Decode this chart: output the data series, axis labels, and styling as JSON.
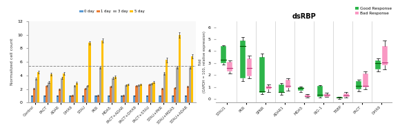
{
  "left": {
    "categories": [
      "Control",
      "PACT",
      "ADAR",
      "DHX9",
      "STAU",
      "PKR",
      "MDA5",
      "PACT+ADAR",
      "PACT+DHX9",
      "PACT+STAU",
      "STAU+PKR",
      "STAU+MDA5",
      "STAU+ADAR"
    ],
    "days": [
      "0 day",
      "1 day",
      "3 day",
      "5 day"
    ],
    "colors": [
      "#5b9bd5",
      "#ed7d31",
      "#a5a5a5",
      "#ffc000"
    ],
    "data": {
      "0 day": [
        1.0,
        1.0,
        1.0,
        1.0,
        1.0,
        1.0,
        1.0,
        1.0,
        1.0,
        1.0,
        1.0,
        1.0,
        1.0
      ],
      "1 day": [
        2.1,
        2.5,
        2.0,
        1.0,
        2.1,
        1.0,
        2.4,
        1.0,
        2.5,
        2.7,
        2.1,
        2.2,
        2.4
      ],
      "3 day": [
        3.5,
        3.0,
        3.6,
        2.5,
        2.5,
        5.2,
        3.6,
        2.6,
        2.6,
        2.8,
        4.3,
        5.2,
        5.2
      ],
      "5 day": [
        4.5,
        4.2,
        4.3,
        2.9,
        8.8,
        9.2,
        3.8,
        2.7,
        2.7,
        3.0,
        6.3,
        10.0,
        6.8
      ]
    },
    "errors": {
      "0 day": [
        0.05,
        0.05,
        0.05,
        0.05,
        0.05,
        0.05,
        0.05,
        0.05,
        0.05,
        0.05,
        0.05,
        0.05,
        0.05
      ],
      "1 day": [
        0.1,
        0.1,
        0.1,
        0.1,
        0.1,
        0.1,
        0.1,
        0.1,
        0.1,
        0.1,
        0.1,
        0.1,
        0.1
      ],
      "3 day": [
        0.15,
        0.15,
        0.15,
        0.1,
        0.1,
        0.2,
        0.15,
        0.1,
        0.1,
        0.1,
        0.2,
        0.2,
        0.2
      ],
      "5 day": [
        0.2,
        0.2,
        0.2,
        0.15,
        0.3,
        0.3,
        0.2,
        0.1,
        0.1,
        0.15,
        0.35,
        0.4,
        0.3
      ]
    },
    "dashed_line_y": 5.4,
    "ylim": [
      0,
      12
    ],
    "yticks": [
      0,
      2,
      4,
      6,
      8,
      10,
      12
    ],
    "ylabel": "Normalized cell count"
  },
  "right": {
    "title": "dsRBP",
    "categories": [
      "STAU1",
      "PKR",
      "SPNR",
      "ADAR1",
      "MDA5",
      "RIG-1",
      "TRBP",
      "PACT",
      "DHX9"
    ],
    "ylabel": "Fold\n(GAPDH = 100, relative expression)",
    "ylim": [
      -0.3,
      6.5
    ],
    "yticks": [
      0,
      1,
      2,
      3,
      4,
      5,
      6
    ],
    "good_response": {
      "STAU1": {
        "q1": 3.0,
        "med": 3.3,
        "q3": 4.4,
        "whislo": 2.85,
        "whishi": 4.5
      },
      "PKR": {
        "q1": 1.7,
        "med": 4.4,
        "q3": 4.9,
        "whislo": 1.5,
        "whishi": 5.2
      },
      "SPNR": {
        "q1": 0.5,
        "med": 0.65,
        "q3": 3.5,
        "whislo": 0.4,
        "whishi": 3.8
      },
      "ADAR1": {
        "q1": 0.5,
        "med": 0.6,
        "q3": 1.2,
        "whislo": 0.35,
        "whishi": 1.35
      },
      "MDA5": {
        "q1": 0.7,
        "med": 0.9,
        "q3": 1.0,
        "whislo": 0.55,
        "whishi": 1.05
      },
      "RIG-1": {
        "q1": 0.2,
        "med": 0.35,
        "q3": 1.1,
        "whislo": 0.1,
        "whishi": 1.15
      },
      "TRBP": {
        "q1": 0.05,
        "med": 0.1,
        "q3": 0.15,
        "whislo": 0.02,
        "whishi": 0.2
      },
      "PACT": {
        "q1": 0.8,
        "med": 1.1,
        "q3": 1.5,
        "whislo": 0.65,
        "whishi": 1.62
      },
      "DHX9": {
        "q1": 2.5,
        "med": 3.0,
        "q3": 3.2,
        "whislo": 2.3,
        "whishi": 3.4
      }
    },
    "bad_response": {
      "STAU1": {
        "q1": 2.3,
        "med": 2.6,
        "q3": 3.1,
        "whislo": 2.1,
        "whishi": 3.2
      },
      "PKR": {
        "q1": 1.9,
        "med": 2.6,
        "q3": 3.4,
        "whislo": 1.7,
        "whishi": 3.6
      },
      "SPNR": {
        "q1": 0.8,
        "med": 1.0,
        "q3": 1.1,
        "whislo": 0.6,
        "whishi": 1.2
      },
      "ADAR1": {
        "q1": 0.9,
        "med": 1.1,
        "q3": 1.6,
        "whislo": 0.7,
        "whishi": 1.72
      },
      "MDA5": {
        "q1": 0.15,
        "med": 0.25,
        "q3": 0.35,
        "whislo": 0.1,
        "whishi": 0.42
      },
      "RIG-1": {
        "q1": 0.2,
        "med": 0.32,
        "q3": 0.42,
        "whislo": 0.15,
        "whishi": 0.5
      },
      "TRBP": {
        "q1": 0.15,
        "med": 0.3,
        "q3": 0.45,
        "whislo": 0.1,
        "whishi": 0.58
      },
      "PACT": {
        "q1": 1.0,
        "med": 1.1,
        "q3": 2.1,
        "whislo": 0.8,
        "whishi": 2.3
      },
      "DHX9": {
        "q1": 2.8,
        "med": 3.05,
        "q3": 4.4,
        "whislo": 2.5,
        "whishi": 4.9
      }
    },
    "good_color": "#2db54a",
    "bad_color": "#f998c3",
    "good_label": "Good Response",
    "bad_label": "Bad Response"
  }
}
